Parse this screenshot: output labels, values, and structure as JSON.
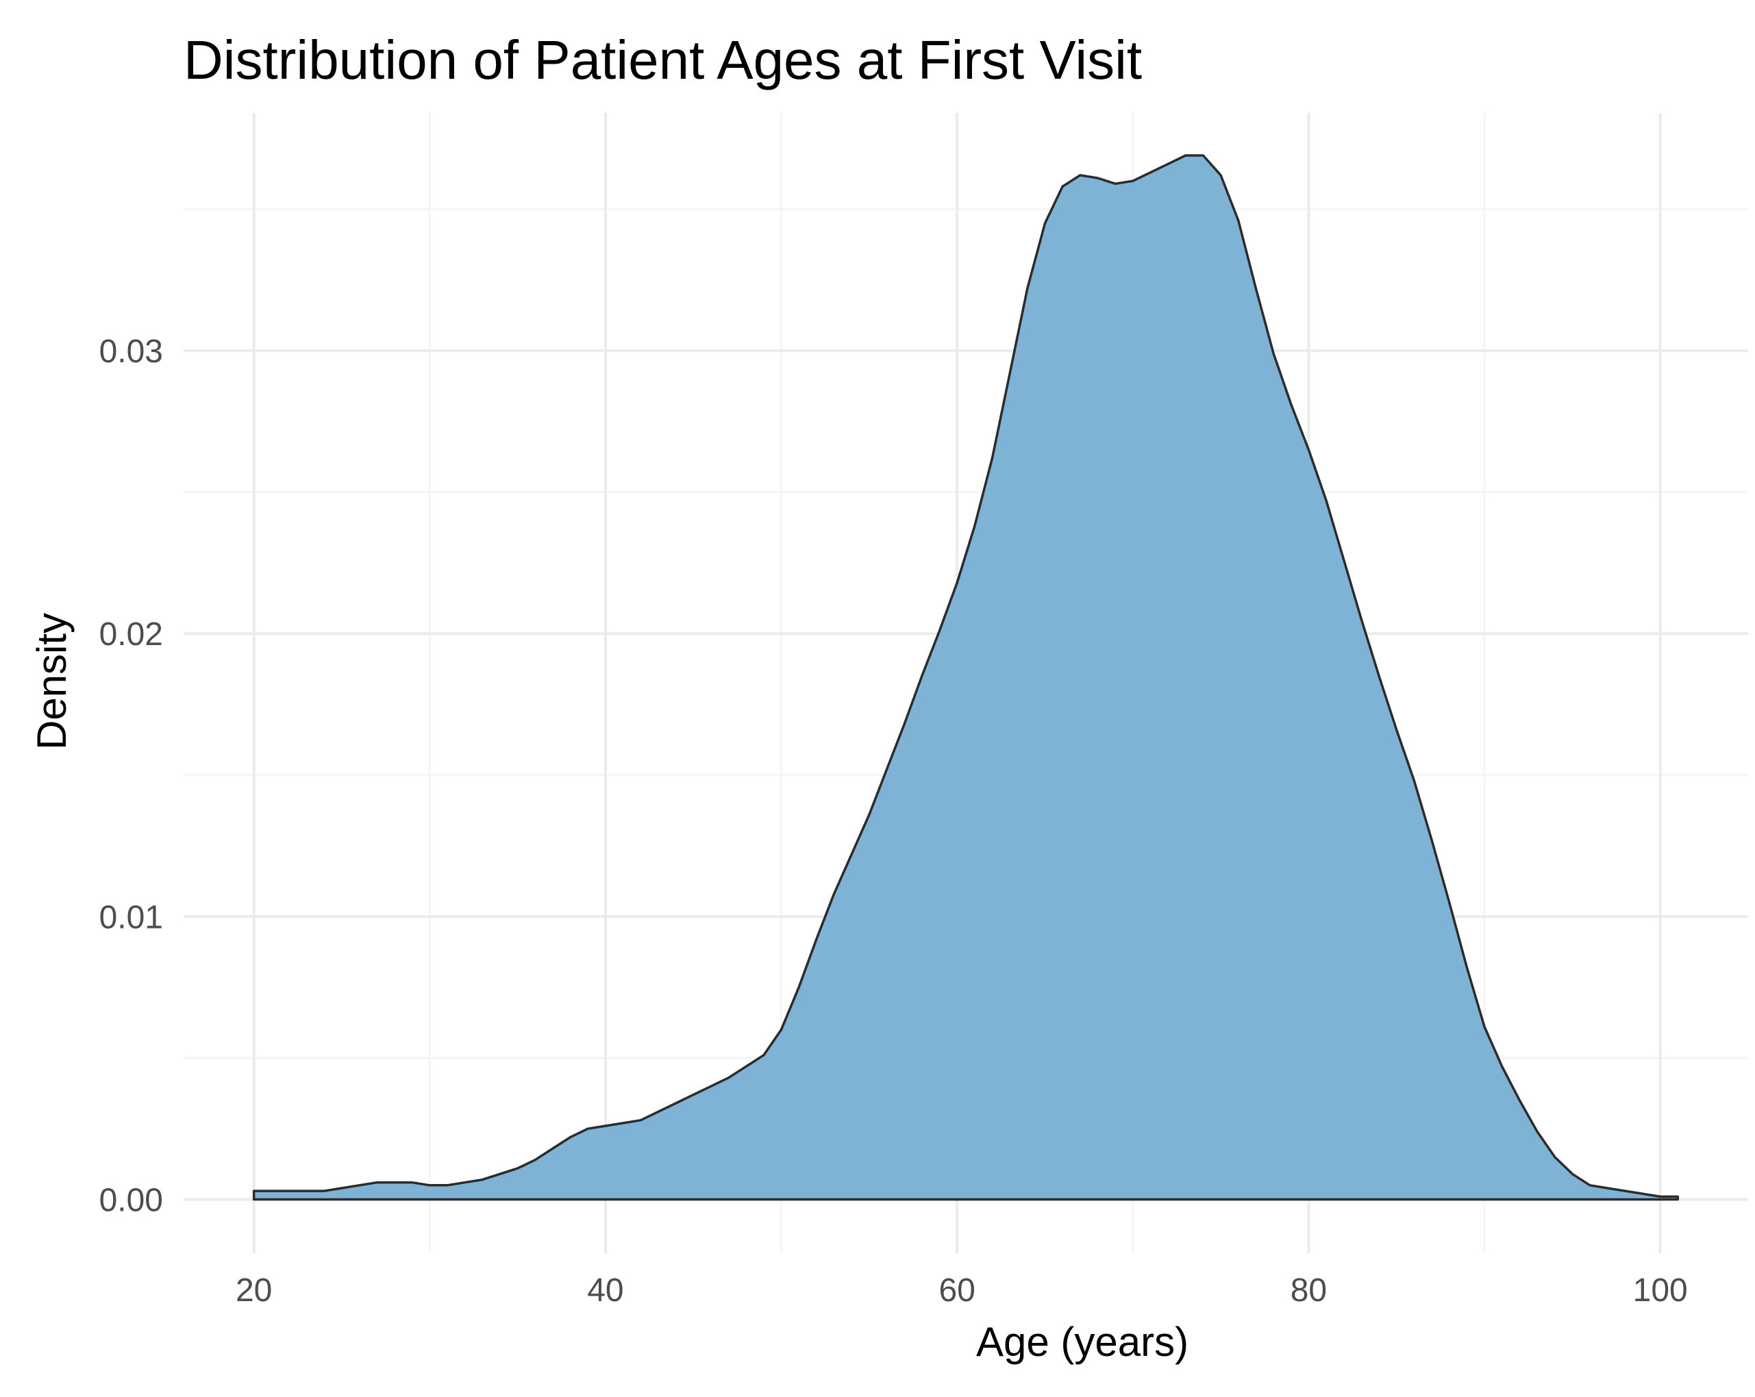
{
  "chart_data": {
    "type": "area",
    "title": "Distribution of Patient Ages at First Visit",
    "xlabel": "Age (years)",
    "ylabel": "Density",
    "xlim": [
      16,
      105
    ],
    "ylim": [
      -0.0019,
      0.0384
    ],
    "x_ticks": [
      20,
      40,
      60,
      80,
      100
    ],
    "x_tick_labels": [
      "20",
      "40",
      "60",
      "80",
      "100"
    ],
    "x_minor_ticks": [
      30,
      50,
      70,
      90
    ],
    "y_ticks": [
      0,
      0.01,
      0.02,
      0.03
    ],
    "y_tick_labels": [
      "0.00",
      "0.01",
      "0.02",
      "0.03"
    ],
    "y_minor_ticks": [
      0.005,
      0.015,
      0.025,
      0.035
    ],
    "grid": true,
    "legend": "none",
    "fill_color": "#7fb3d5",
    "line_color": "#2b2b2b",
    "series": [
      {
        "x": [
          20,
          22,
          24,
          25,
          26,
          27,
          28,
          29,
          30,
          31,
          32,
          33,
          34,
          35,
          36,
          37,
          38,
          39,
          40,
          41,
          42,
          43,
          44,
          45,
          46,
          47,
          48,
          49,
          50,
          51,
          52,
          53,
          54,
          55,
          56,
          57,
          58,
          59,
          60,
          61,
          62,
          63,
          64,
          65,
          66,
          67,
          68,
          69,
          70,
          71,
          72,
          73,
          74,
          75,
          76,
          77,
          78,
          79,
          80,
          81,
          82,
          83,
          84,
          85,
          86,
          87,
          88,
          89,
          90,
          91,
          92,
          93,
          94,
          95,
          96,
          97,
          98,
          99,
          100,
          101
        ],
        "y": [
          0.0003,
          0.0003,
          0.0003,
          0.0004,
          0.0005,
          0.0006,
          0.0006,
          0.0006,
          0.0005,
          0.0005,
          0.0006,
          0.0007,
          0.0009,
          0.0011,
          0.0014,
          0.0018,
          0.0022,
          0.0025,
          0.0026,
          0.0027,
          0.0028,
          0.0031,
          0.0034,
          0.0037,
          0.004,
          0.0043,
          0.0047,
          0.0051,
          0.006,
          0.0075,
          0.0092,
          0.0108,
          0.0122,
          0.0136,
          0.0152,
          0.0168,
          0.0185,
          0.0201,
          0.0218,
          0.0238,
          0.0262,
          0.0292,
          0.0322,
          0.0345,
          0.0358,
          0.0362,
          0.0361,
          0.0359,
          0.036,
          0.0363,
          0.0366,
          0.0369,
          0.0369,
          0.0362,
          0.0346,
          0.0322,
          0.0299,
          0.0281,
          0.0265,
          0.0247,
          0.0226,
          0.0205,
          0.0185,
          0.0166,
          0.0148,
          0.0127,
          0.0105,
          0.0082,
          0.0061,
          0.0047,
          0.0035,
          0.0024,
          0.0015,
          0.0009,
          0.0005,
          0.0004,
          0.0003,
          0.0002,
          0.0001,
          0.0001
        ]
      }
    ]
  }
}
